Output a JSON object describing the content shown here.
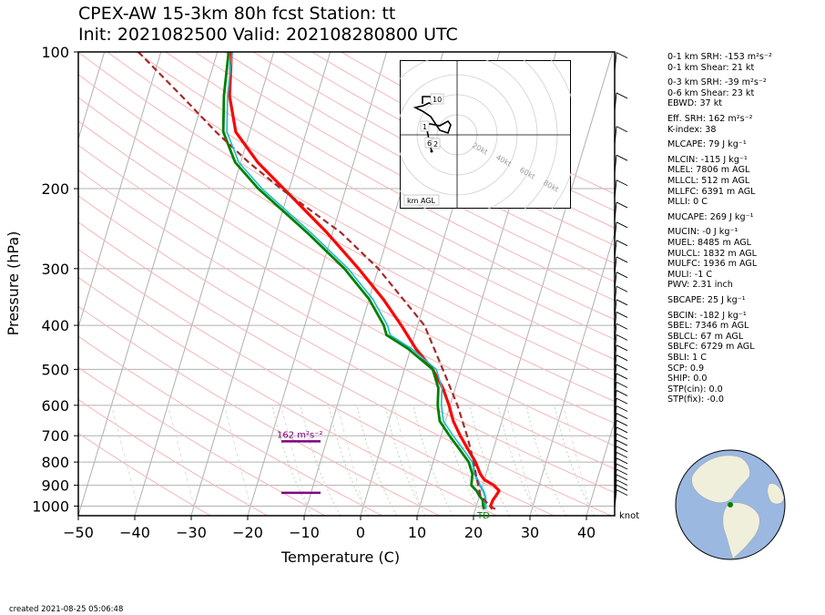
{
  "header": {
    "title_line1": "CPEX-AW 15-3km  80h fcst  Station: tt",
    "title_line2": "Init: 2021082500  Valid: 202108280800 UTC"
  },
  "footer": {
    "created": "created 2021-08-25 05:06:48"
  },
  "chart_data": {
    "type": "line",
    "subtype": "skew-T log-P sounding",
    "xlabel": "Temperature (C)",
    "ylabel": "Pressure (hPa)",
    "xlim": [
      -50,
      45
    ],
    "ylim": [
      1050,
      100
    ],
    "y_scale": "log",
    "x_ticks": [
      -50,
      -40,
      -30,
      -20,
      -10,
      0,
      10,
      20,
      30,
      40
    ],
    "x_tick_labels": [
      "−50",
      "−40",
      "−30",
      "−20",
      "−10",
      "0",
      "10",
      "20",
      "30",
      "40"
    ],
    "y_ticks": [
      100,
      200,
      300,
      400,
      500,
      600,
      700,
      800,
      900,
      1000
    ],
    "y_tick_labels": [
      "100",
      "200",
      "300",
      "400",
      "500",
      "600",
      "700",
      "800",
      "900",
      "1000"
    ],
    "grid": true,
    "colors": {
      "temperature": "#ff0000",
      "dewpoint": "#008000",
      "wetbulb": "#17becf",
      "virtual_temp": "#1f3f9f",
      "parcel": "#a52a2a",
      "srh_marker": "#800080",
      "dry_adiabat": "#f4b6b6",
      "moist_adiabat": "#b8d8b8"
    },
    "series": [
      {
        "key": "temperature",
        "pressure": [
          1015,
          1000,
          970,
          950,
          925,
          900,
          875,
          850,
          800,
          750,
          700,
          650,
          600,
          550,
          500,
          450,
          400,
          350,
          300,
          250,
          200,
          175,
          150,
          125,
          100
        ],
        "values": [
          23.0,
          22.5,
          22.6,
          22.9,
          23.2,
          22.0,
          20.0,
          19.0,
          17.5,
          15.5,
          13.4,
          11.4,
          9.8,
          7.8,
          5.0,
          0.9,
          -2.9,
          -7.5,
          -13.5,
          -21.0,
          -31.0,
          -37.0,
          -42.5,
          -45.5,
          -47.5
        ]
      },
      {
        "key": "dewpoint",
        "pressure": [
          1015,
          1000,
          970,
          950,
          925,
          900,
          875,
          850,
          800,
          750,
          700,
          650,
          600,
          550,
          500,
          450,
          420,
          400,
          350,
          300,
          250,
          200,
          175,
          150,
          125,
          100
        ],
        "values": [
          21.5,
          21.2,
          20.8,
          20.0,
          19.2,
          18.0,
          17.8,
          17.6,
          16.3,
          14.0,
          11.5,
          9.0,
          7.8,
          7.0,
          5.0,
          -0.5,
          -5.0,
          -6.0,
          -10.0,
          -16.0,
          -24.5,
          -35.5,
          -41.0,
          -44.7,
          -46.5,
          -48.0
        ]
      },
      {
        "key": "wetbulb",
        "pressure": [
          1015,
          1000,
          970,
          950,
          925,
          900,
          875,
          850,
          800
        ],
        "values": [
          21.8,
          21.6,
          21.3,
          21.0,
          20.4,
          19.5,
          18.8,
          18.0,
          17.0
        ]
      },
      {
        "key": "parcel",
        "pressure": [
          1015,
          1000,
          950,
          900,
          850,
          800,
          700,
          600,
          500,
          400,
          300,
          250,
          200,
          175,
          150,
          125,
          100
        ],
        "values": [
          23.5,
          22.4,
          20.2,
          19.2,
          18.2,
          17.2,
          14.6,
          11.3,
          6.8,
          1.2,
          -10.0,
          -18.5,
          -31.5,
          -38.6,
          -46.0,
          -54.0,
          -64.0
        ]
      }
    ],
    "srh_markers": [
      {
        "pressure": 720,
        "label": "162 m$^2$s$^{-2}$",
        "label_display": "162 m²s⁻²"
      },
      {
        "pressure": 935,
        "label": ""
      }
    ],
    "surface_label": "TD",
    "wind_unit": "knot",
    "hodograph": {
      "ring_labels": [
        "20kt",
        "40kt",
        "60kt",
        "80kt"
      ],
      "height_labels": [
        "10",
        "1",
        "6",
        "2"
      ],
      "corner_label": "km AGL"
    },
    "indices": [
      "0-1 km SRH: -153 m²s⁻²",
      "0-1 km Shear: 21 kt",
      "0-3 km SRH: -39 m²s⁻²",
      "0-6 km Shear: 23 kt",
      "EBWD: 37 kt",
      "Eff. SRH: 162 m²s⁻²",
      "K-index: 38",
      "MLCAPE: 79 J kg⁻¹",
      "MLCIN: -115 J kg⁻¹",
      "MLEL: 7806 m AGL",
      "MLLCL: 512 m AGL",
      "MLLFC: 6391 m AGL",
      "MLLI: 0 C",
      "MUCAPE: 269 J kg⁻¹",
      "MUCIN: -0 J kg⁻¹",
      "MUEL: 8485 m AGL",
      "MULCL: 1832 m AGL",
      "MULFC: 1936 m AGL",
      "MULI: -1 C",
      "PWV: 2.31 inch",
      "SBCAPE: 25 J kg⁻¹",
      "SBCIN: -182 J kg⁻¹",
      "SBEL: 7346 m AGL",
      "SBLCL: 67 m AGL",
      "SBLFC: 6729 m AGL",
      "SBLI: 1 C",
      "SCP: 0.9",
      "SHIP: 0.0",
      "STP(cin): 0.0",
      "STP(fix): -0.0"
    ]
  }
}
